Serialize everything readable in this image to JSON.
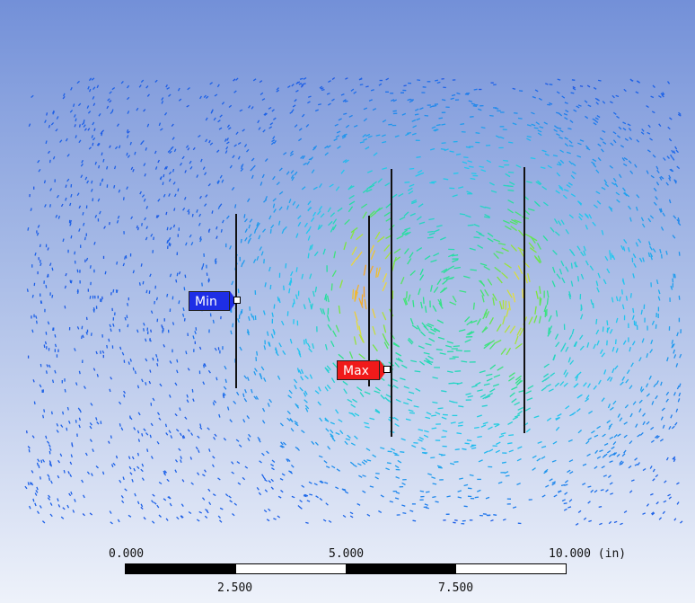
{
  "probes": {
    "min_label": "Min",
    "max_label": "Max",
    "min_color": "#1e2ee6",
    "max_color": "#f01a1a"
  },
  "scale_bar": {
    "top_labels": [
      "0.000",
      "5.000",
      "10.000 (in)"
    ],
    "bottom_labels": [
      "2.500",
      "7.500"
    ]
  },
  "colors": {
    "background_top": "#7390d8",
    "background_bottom": "#eef2fa",
    "vector_low": "#1a35d8",
    "vector_high": "#f0a030"
  }
}
